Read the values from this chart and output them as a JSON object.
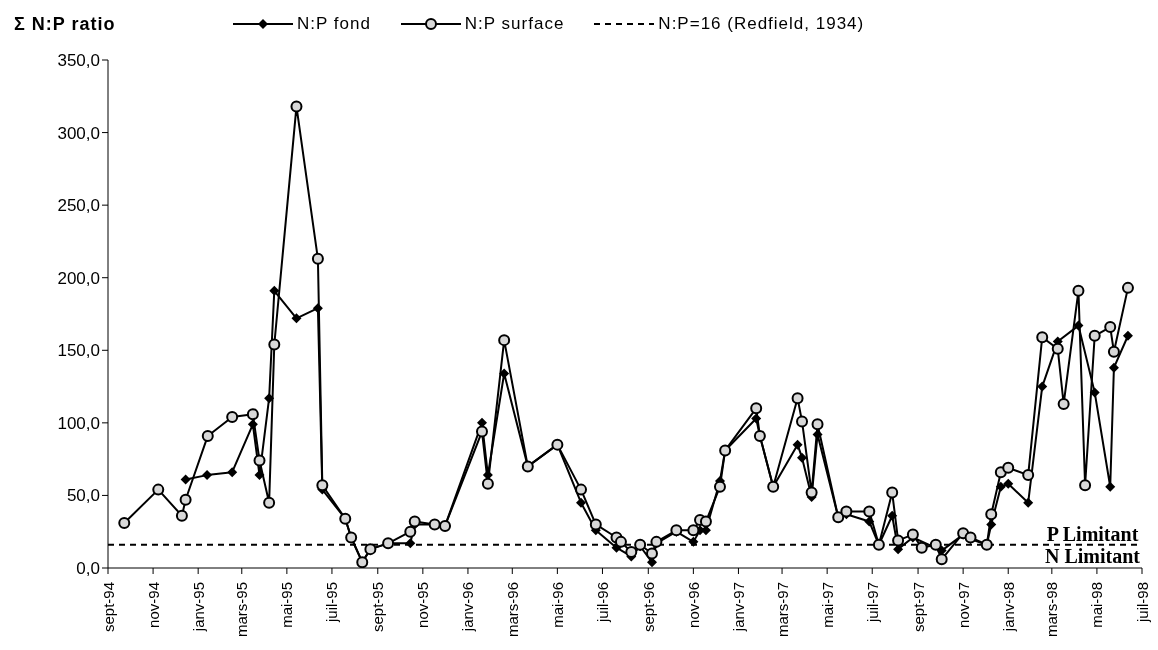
{
  "chart_data": {
    "type": "line",
    "ylabel": "Σ N:P ratio",
    "xlim": [
      "1994-09-01",
      "1998-07-01"
    ],
    "xticks": [
      {
        "value": "1994-09-01",
        "label": "sept-94"
      },
      {
        "value": "1994-11-01",
        "label": "nov-94"
      },
      {
        "value": "1995-01-01",
        "label": "janv-95"
      },
      {
        "value": "1995-03-01",
        "label": "mars-95"
      },
      {
        "value": "1995-05-01",
        "label": "mai-95"
      },
      {
        "value": "1995-07-01",
        "label": "juil-95"
      },
      {
        "value": "1995-09-01",
        "label": "sept-95"
      },
      {
        "value": "1995-11-01",
        "label": "nov-95"
      },
      {
        "value": "1996-01-01",
        "label": "janv-96"
      },
      {
        "value": "1996-03-01",
        "label": "mars-96"
      },
      {
        "value": "1996-05-01",
        "label": "mai-96"
      },
      {
        "value": "1996-07-01",
        "label": "juil-96"
      },
      {
        "value": "1996-09-01",
        "label": "sept-96"
      },
      {
        "value": "1996-11-01",
        "label": "nov-96"
      },
      {
        "value": "1997-01-01",
        "label": "janv-97"
      },
      {
        "value": "1997-03-01",
        "label": "mars-97"
      },
      {
        "value": "1997-05-01",
        "label": "mai-97"
      },
      {
        "value": "1997-07-01",
        "label": "juil-97"
      },
      {
        "value": "1997-09-01",
        "label": "sept-97"
      },
      {
        "value": "1997-11-01",
        "label": "nov-97"
      },
      {
        "value": "1998-01-01",
        "label": "janv-98"
      },
      {
        "value": "1998-03-01",
        "label": "mars-98"
      },
      {
        "value": "1998-05-01",
        "label": "mai-98"
      },
      {
        "value": "1998-07-01",
        "label": "juil-98"
      }
    ],
    "ylim": [
      0,
      350
    ],
    "yticks": [
      {
        "value": 0,
        "label": "0,0"
      },
      {
        "value": 50,
        "label": "50,0"
      },
      {
        "value": 100,
        "label": "100,0"
      },
      {
        "value": 150,
        "label": "150,0"
      },
      {
        "value": 200,
        "label": "200,0"
      },
      {
        "value": 250,
        "label": "250,0"
      },
      {
        "value": 300,
        "label": "300,0"
      },
      {
        "value": 350,
        "label": "350,0"
      }
    ],
    "legend": "top",
    "line_style": "solid",
    "series": [
      {
        "name": "N:P fond",
        "color": "#000000",
        "marker": "diamond",
        "x": [
          "1994-12-15",
          "1995-01-13",
          "1995-02-16",
          "1995-03-16",
          "1995-03-25",
          "1995-04-07",
          "1995-04-14",
          "1995-05-14",
          "1995-06-12",
          "1995-06-18",
          "1995-07-19",
          "1995-07-27",
          "1995-08-11",
          "1995-08-22",
          "1995-09-15",
          "1995-10-15",
          "1995-10-21",
          "1995-11-17",
          "1995-12-01",
          "1996-01-20",
          "1996-01-28",
          "1996-02-19",
          "1996-03-22",
          "1996-05-01",
          "1996-06-02",
          "1996-06-22",
          "1996-07-20",
          "1996-08-09",
          "1996-08-21",
          "1996-09-06",
          "1996-09-12",
          "1996-10-09",
          "1996-11-01",
          "1996-11-10",
          "1996-11-18",
          "1996-12-07",
          "1996-12-14",
          "1997-01-25",
          "1997-01-30",
          "1997-02-17",
          "1997-03-22",
          "1997-03-28",
          "1997-04-10",
          "1997-04-18",
          "1997-05-16",
          "1997-05-27",
          "1997-06-27",
          "1997-07-10",
          "1997-07-28",
          "1997-08-05",
          "1997-08-25",
          "1997-10-03",
          "1997-11-01",
          "1997-11-11",
          "1997-12-03",
          "1997-12-09",
          "1997-12-22",
          "1998-01-01",
          "1998-01-28",
          "1998-02-16",
          "1998-03-09",
          "1998-04-06",
          "1998-04-28",
          "1998-05-19",
          "1998-05-24",
          "1998-06-12"
        ],
        "values": [
          61,
          64,
          66,
          99,
          64,
          117,
          191,
          172,
          179,
          54,
          34,
          21,
          4,
          13,
          17,
          17,
          30,
          30,
          29,
          100,
          64,
          134,
          70,
          85,
          45,
          26,
          14,
          8,
          15,
          4,
          17,
          25,
          18,
          26,
          26,
          60,
          81,
          103,
          91,
          56,
          85,
          76,
          49,
          92,
          35,
          37,
          32,
          16,
          36,
          13,
          21,
          12,
          23,
          20,
          16,
          30,
          56,
          58,
          45,
          125,
          156,
          167,
          121,
          56,
          138,
          160
        ]
      },
      {
        "name": "N:P surface",
        "color": "#000000",
        "marker": "circle",
        "x": [
          "1994-09-23",
          "1994-11-08",
          "1994-12-10",
          "1994-12-15",
          "1995-01-14",
          "1995-02-16",
          "1995-03-16",
          "1995-03-25",
          "1995-04-07",
          "1995-04-14",
          "1995-05-14",
          "1995-06-12",
          "1995-06-18",
          "1995-07-19",
          "1995-07-27",
          "1995-08-11",
          "1995-08-22",
          "1995-09-15",
          "1995-10-15",
          "1995-10-21",
          "1995-11-17",
          "1995-12-01",
          "1996-01-20",
          "1996-01-28",
          "1996-02-19",
          "1996-03-22",
          "1996-05-01",
          "1996-06-02",
          "1996-06-22",
          "1996-07-20",
          "1996-07-26",
          "1996-08-09",
          "1996-08-21",
          "1996-09-06",
          "1996-09-12",
          "1996-10-09",
          "1996-11-01",
          "1996-11-10",
          "1996-11-18",
          "1996-12-07",
          "1996-12-14",
          "1997-01-25",
          "1997-01-30",
          "1997-02-17",
          "1997-03-22",
          "1997-03-28",
          "1997-04-10",
          "1997-04-18",
          "1997-05-16",
          "1997-05-27",
          "1997-06-27",
          "1997-07-10",
          "1997-07-28",
          "1997-08-05",
          "1997-08-25",
          "1997-09-06",
          "1997-09-25",
          "1997-10-03",
          "1997-11-01",
          "1997-11-11",
          "1997-12-03",
          "1997-12-09",
          "1997-12-22",
          "1998-01-01",
          "1998-01-28",
          "1998-02-16",
          "1998-03-09",
          "1998-03-17",
          "1998-04-06",
          "1998-04-15",
          "1998-04-28",
          "1998-05-19",
          "1998-05-24",
          "1998-06-12"
        ],
        "values": [
          31,
          54,
          36,
          47,
          91,
          104,
          106,
          74,
          45,
          154,
          318,
          213,
          57,
          34,
          21,
          4,
          13,
          17,
          25,
          32,
          30,
          29,
          94,
          58,
          157,
          70,
          85,
          54,
          30,
          21,
          18,
          11,
          16,
          10,
          18,
          26,
          26,
          33,
          32,
          56,
          81,
          110,
          91,
          56,
          117,
          101,
          52,
          99,
          35,
          39,
          39,
          16,
          52,
          19,
          23,
          14,
          16,
          6,
          24,
          21,
          16,
          37,
          66,
          69,
          64,
          159,
          151,
          113,
          191,
          57,
          160,
          166,
          149,
          193
        ]
      }
    ],
    "ref_lines": [
      {
        "axis": "y",
        "value": 16,
        "label": "N:P=16 (Redfield, 1934)",
        "line_style": "dashed",
        "color": "#000000"
      }
    ],
    "annotations": [
      {
        "text": "P Limitant",
        "x": "1998-04-25",
        "y": 16
      },
      {
        "text": "N Limitant",
        "x": "1998-04-25",
        "y": 16
      }
    ]
  }
}
